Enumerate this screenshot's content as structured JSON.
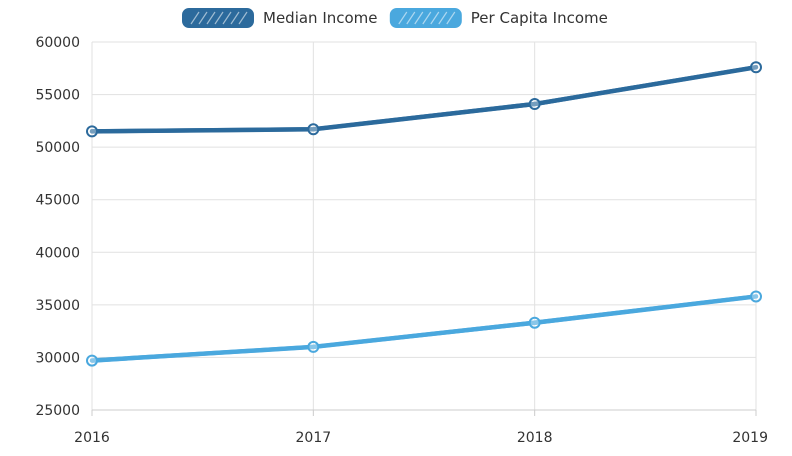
{
  "chart_data": {
    "type": "line",
    "title": "",
    "xlabel": "",
    "ylabel": "",
    "categories": [
      "2016",
      "2017",
      "2018",
      "2019"
    ],
    "series": [
      {
        "name": "Median Income",
        "color": "#2c6a9c",
        "values": [
          51500,
          51700,
          54100,
          57600
        ]
      },
      {
        "name": "Per Capita Income",
        "color": "#4aa8de",
        "values": [
          29700,
          31000,
          33300,
          35800
        ]
      }
    ],
    "ylim": [
      25000,
      60000
    ],
    "yticks": [
      25000,
      30000,
      35000,
      40000,
      45000,
      50000,
      55000,
      60000
    ],
    "ytick_labels": [
      "25000",
      "30000",
      "35000",
      "40000",
      "45000",
      "50000",
      "55000",
      "60000"
    ],
    "grid": true,
    "legend_position": "top-center",
    "style": "hand-drawn"
  }
}
